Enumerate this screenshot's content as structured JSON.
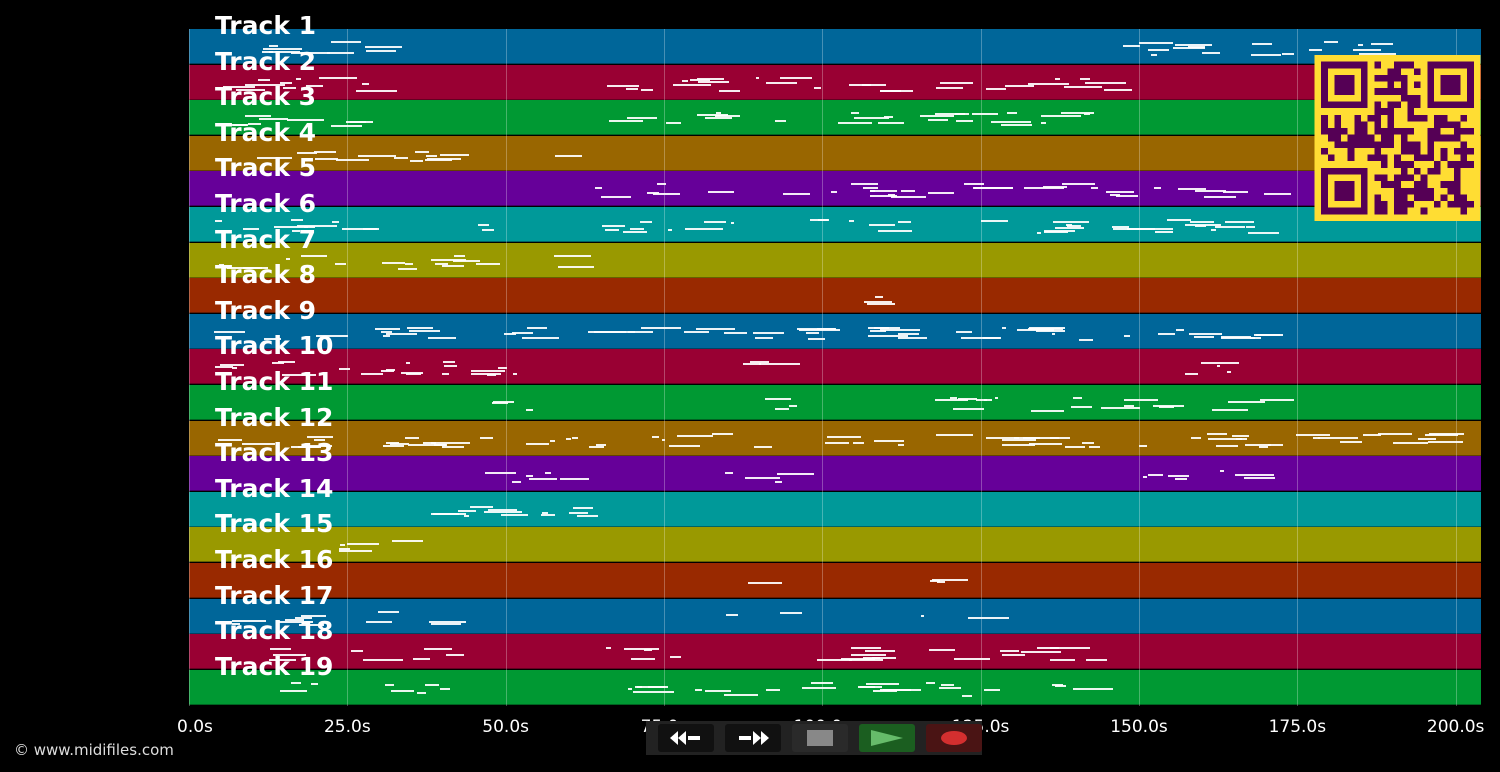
{
  "tracks": [
    {
      "name": "Track 1",
      "color": "#006699"
    },
    {
      "name": "Track 2",
      "color": "#990033"
    },
    {
      "name": "Track 3",
      "color": "#009933"
    },
    {
      "name": "Track 4",
      "color": "#996600"
    },
    {
      "name": "Track 5",
      "color": "#660099"
    },
    {
      "name": "Track 6",
      "color": "#009999"
    },
    {
      "name": "Track 7",
      "color": "#999900"
    },
    {
      "name": "Track 8",
      "color": "#992900"
    },
    {
      "name": "Track 9",
      "color": "#006699"
    },
    {
      "name": "Track 10",
      "color": "#990033"
    },
    {
      "name": "Track 11",
      "color": "#009933"
    },
    {
      "name": "Track 12",
      "color": "#996600"
    },
    {
      "name": "Track 13",
      "color": "#660099"
    },
    {
      "name": "Track 14",
      "color": "#009999"
    },
    {
      "name": "Track 15",
      "color": "#999900"
    },
    {
      "name": "Track 16",
      "color": "#992900"
    },
    {
      "name": "Track 17",
      "color": "#006699"
    },
    {
      "name": "Track 18",
      "color": "#990033"
    },
    {
      "name": "Track 19",
      "color": "#009933"
    }
  ],
  "timeline": {
    "max_seconds": 204,
    "ticks": [
      {
        "value": 0,
        "label": "0.0s"
      },
      {
        "value": 25,
        "label": "25.0s"
      },
      {
        "value": 50,
        "label": "50.0s"
      },
      {
        "value": 75,
        "label": "75.0s"
      },
      {
        "value": 100,
        "label": "100.0s"
      },
      {
        "value": 125,
        "label": "125.0s"
      },
      {
        "value": 150,
        "label": "150.0s"
      },
      {
        "value": 175,
        "label": "175.0s"
      },
      {
        "value": 200,
        "label": "200.0s"
      }
    ]
  },
  "copyright": "© www.midifiles.com",
  "transport": {
    "rewind_icon": "rewind-icon",
    "fast_forward_icon": "fast-forward-icon",
    "stop_icon": "stop-icon",
    "play_icon": "play-icon",
    "record_icon": "record-icon"
  },
  "colors": {
    "background": "#000000",
    "qr_background": "#ffdd33",
    "qr_foreground": "#550055",
    "play_green": "#2e7d32",
    "record_red": "#c62828"
  }
}
